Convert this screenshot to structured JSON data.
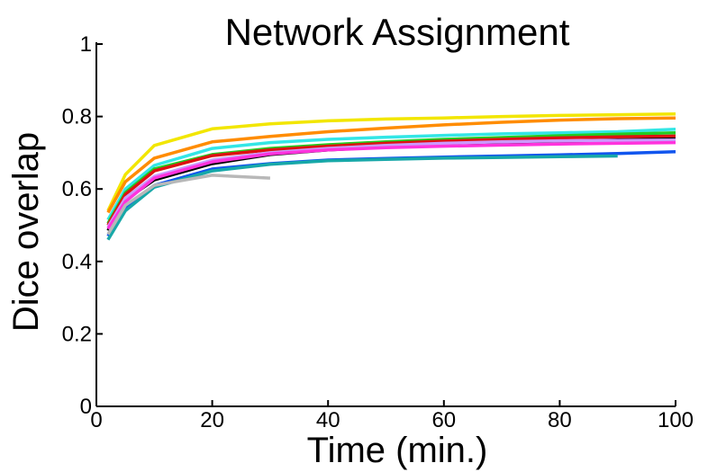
{
  "chart_data": {
    "type": "line",
    "title": "Network Assignment",
    "xlabel": "Time (min.)",
    "ylabel": "Dice overlap",
    "xlim": [
      0,
      100
    ],
    "ylim": [
      0,
      1
    ],
    "xticks": [
      "0",
      "20",
      "40",
      "60",
      "80",
      "100"
    ],
    "yticks": [
      "0",
      "0.2",
      "0.4",
      "0.6",
      "0.8",
      "1"
    ],
    "grid": false,
    "legend": "none",
    "series": [
      {
        "color": "#f2e600",
        "x": [
          2,
          5,
          10,
          20,
          30,
          40,
          50,
          60,
          70,
          80,
          90,
          100
        ],
        "y": [
          0.54,
          0.64,
          0.72,
          0.766,
          0.78,
          0.788,
          0.793,
          0.796,
          0.8,
          0.803,
          0.805,
          0.807
        ]
      },
      {
        "color": "#ff8c00",
        "x": [
          2,
          5,
          10,
          20,
          30,
          40,
          50,
          60,
          70,
          80,
          90,
          100
        ],
        "y": [
          0.535,
          0.62,
          0.685,
          0.73,
          0.745,
          0.758,
          0.768,
          0.777,
          0.784,
          0.79,
          0.794,
          0.796
        ]
      },
      {
        "color": "#33e6e6",
        "x": [
          2,
          5,
          10,
          20,
          30,
          40,
          50,
          60,
          70,
          80,
          90,
          100
        ],
        "y": [
          0.515,
          0.6,
          0.665,
          0.712,
          0.728,
          0.737,
          0.743,
          0.748,
          0.752,
          0.755,
          0.758,
          0.765
        ]
      },
      {
        "color": "#22cc22",
        "x": [
          2,
          5,
          10,
          20,
          30,
          40,
          50,
          60,
          70,
          80,
          90,
          100
        ],
        "y": [
          0.505,
          0.59,
          0.655,
          0.695,
          0.712,
          0.722,
          0.73,
          0.737,
          0.742,
          0.747,
          0.751,
          0.755
        ]
      },
      {
        "color": "#dd1111",
        "x": [
          2,
          5,
          10,
          20,
          30,
          40,
          50,
          60,
          70,
          80,
          90,
          100
        ],
        "y": [
          0.5,
          0.585,
          0.65,
          0.692,
          0.708,
          0.718,
          0.726,
          0.732,
          0.737,
          0.741,
          0.744,
          0.746
        ]
      },
      {
        "color": "#000000",
        "x": [
          2,
          5,
          10,
          20,
          30,
          40,
          50,
          60,
          70,
          80,
          90,
          100
        ],
        "y": [
          0.485,
          0.57,
          0.625,
          0.67,
          0.695,
          0.708,
          0.716,
          0.722,
          0.727,
          0.731,
          0.735,
          0.738
        ]
      },
      {
        "color": "#cc99ff",
        "x": [
          2,
          5,
          10,
          20,
          30,
          40,
          50,
          60,
          70,
          80,
          90,
          100
        ],
        "y": [
          0.495,
          0.575,
          0.635,
          0.68,
          0.7,
          0.712,
          0.72,
          0.726,
          0.73,
          0.733,
          0.734,
          0.735
        ]
      },
      {
        "color": "#ff33dd",
        "x": [
          2,
          5,
          10,
          20,
          30,
          40,
          50,
          60,
          70,
          80,
          90,
          100
        ],
        "y": [
          0.49,
          0.565,
          0.63,
          0.675,
          0.697,
          0.708,
          0.714,
          0.718,
          0.721,
          0.724,
          0.726,
          0.728
        ]
      },
      {
        "color": "#1155ee",
        "x": [
          2,
          5,
          10,
          20,
          30,
          40,
          50,
          60,
          70,
          80,
          90,
          100
        ],
        "y": [
          0.47,
          0.55,
          0.61,
          0.655,
          0.67,
          0.68,
          0.684,
          0.688,
          0.691,
          0.694,
          0.698,
          0.703
        ]
      },
      {
        "color": "#17a8a8",
        "x": [
          2,
          5,
          10,
          20,
          30,
          40,
          50,
          60,
          70,
          80,
          90
        ],
        "y": [
          0.46,
          0.54,
          0.605,
          0.65,
          0.668,
          0.678,
          0.682,
          0.685,
          0.687,
          0.689,
          0.691
        ]
      },
      {
        "color": "#b8b8b8",
        "x": [
          2,
          5,
          10,
          20,
          30
        ],
        "y": [
          0.475,
          0.555,
          0.61,
          0.638,
          0.63
        ]
      }
    ]
  }
}
